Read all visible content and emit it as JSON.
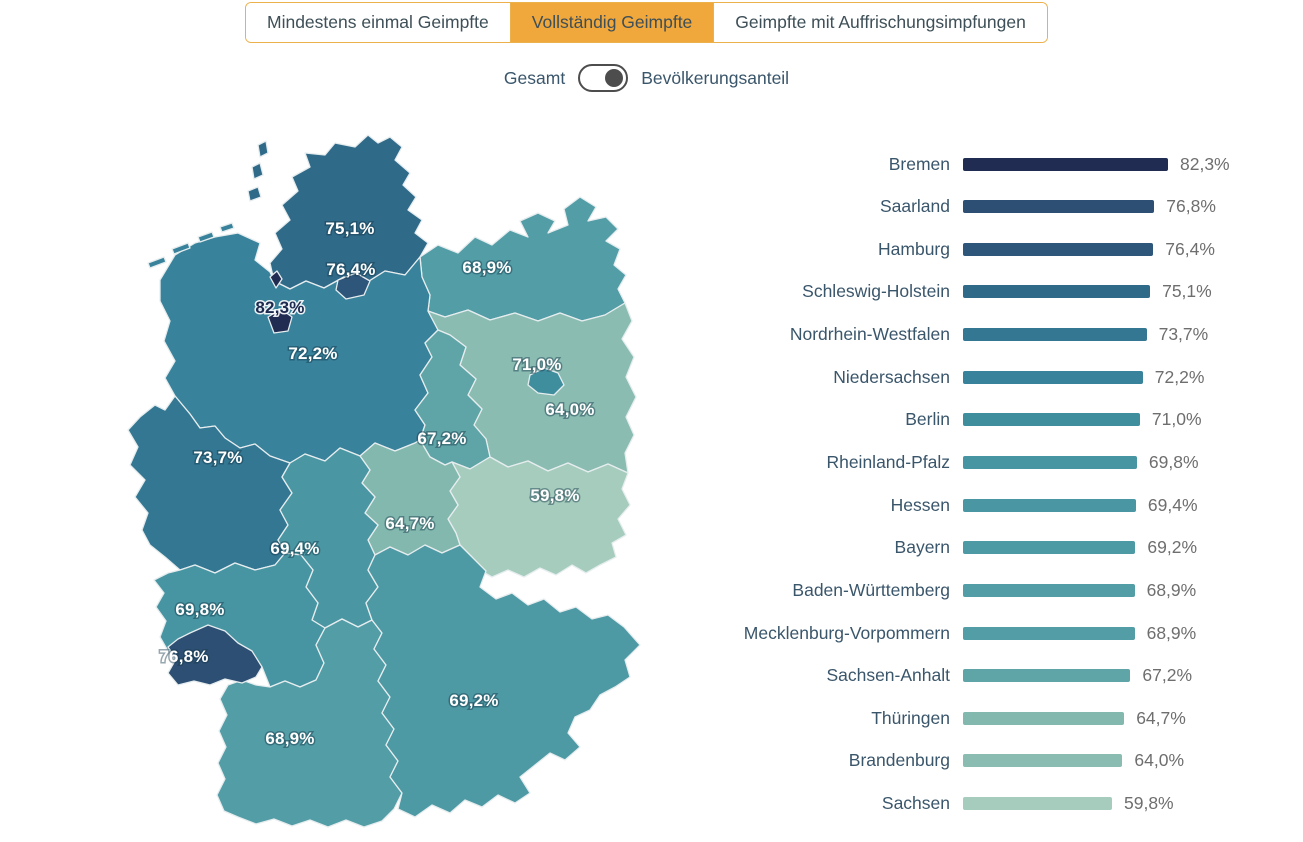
{
  "tabs": [
    {
      "label": "Mindestens einmal Geimpfte",
      "active": false
    },
    {
      "label": "Vollständig Geimpfte",
      "active": true
    },
    {
      "label": "Geimpfte mit Auffrischungsimpfungen",
      "active": false
    }
  ],
  "toggle": {
    "left_label": "Gesamt",
    "right_label": "Bevölkerungsanteil",
    "state": "right"
  },
  "colors": {
    "accent_amber": "#f0a73c",
    "tab_border": "#edb14c",
    "text_dark": "#3a566b",
    "value_gray": "#6e6e6e",
    "map_border": "#e6edef",
    "toggle_knob": "#4d4d4d"
  },
  "chart_data": {
    "type": "bar",
    "subtype": "choropleth-map-with-bar-list",
    "title": "",
    "unit": "%",
    "xlim": [
      0,
      82.3
    ],
    "legend": "none",
    "categories": [
      "Bremen",
      "Saarland",
      "Hamburg",
      "Schleswig-Holstein",
      "Nordrhein-Westfalen",
      "Niedersachsen",
      "Berlin",
      "Rheinland-Pfalz",
      "Hessen",
      "Bayern",
      "Baden-Württemberg",
      "Mecklenburg-Vorpommern",
      "Sachsen-Anhalt",
      "Thüringen",
      "Brandenburg",
      "Sachsen"
    ],
    "values": [
      82.3,
      76.8,
      76.4,
      75.1,
      73.7,
      72.2,
      71.0,
      69.8,
      69.4,
      69.2,
      68.9,
      68.9,
      67.2,
      64.7,
      64.0,
      59.8
    ],
    "states": [
      {
        "id": "bremen",
        "name": "Bremen",
        "value": 82.3,
        "label": "82,3%",
        "color": "#212c52"
      },
      {
        "id": "saarland",
        "name": "Saarland",
        "value": 76.8,
        "label": "76,8%",
        "color": "#2c4f73"
      },
      {
        "id": "hamburg",
        "name": "Hamburg",
        "value": 76.4,
        "label": "76,4%",
        "color": "#2e567a"
      },
      {
        "id": "schleswig-holstein",
        "name": "Schleswig-Holstein",
        "value": 75.1,
        "label": "75,1%",
        "color": "#306a89"
      },
      {
        "id": "nordrhein-westfalen",
        "name": "Nordrhein-Westfalen",
        "value": 73.7,
        "label": "73,7%",
        "color": "#337793"
      },
      {
        "id": "niedersachsen",
        "name": "Niedersachsen",
        "value": 72.2,
        "label": "72,2%",
        "color": "#38829b"
      },
      {
        "id": "berlin",
        "name": "Berlin",
        "value": 71.0,
        "label": "71,0%",
        "color": "#3f8e9e"
      },
      {
        "id": "rheinland-pfalz",
        "name": "Rheinland-Pfalz",
        "value": 69.8,
        "label": "69,8%",
        "color": "#4795a2"
      },
      {
        "id": "hessen",
        "name": "Hessen",
        "value": 69.4,
        "label": "69,4%",
        "color": "#4a97a3"
      },
      {
        "id": "bayern",
        "name": "Bayern",
        "value": 69.2,
        "label": "69,2%",
        "color": "#4d99a4"
      },
      {
        "id": "baden-wuerttemberg",
        "name": "Baden-Württemberg",
        "value": 68.9,
        "label": "68,9%",
        "color": "#529da6"
      },
      {
        "id": "mecklenburg-vorpommern",
        "name": "Mecklenburg-Vorpommern",
        "value": 68.9,
        "label": "68,9%",
        "color": "#529da6"
      },
      {
        "id": "sachsen-anhalt",
        "name": "Sachsen-Anhalt",
        "value": 67.2,
        "label": "67,2%",
        "color": "#5fa5a7"
      },
      {
        "id": "thueringen",
        "name": "Thüringen",
        "value": 64.7,
        "label": "64,7%",
        "color": "#83b8af"
      },
      {
        "id": "brandenburg",
        "name": "Brandenburg",
        "value": 64.0,
        "label": "64,0%",
        "color": "#8abcb2"
      },
      {
        "id": "sachsen",
        "name": "Sachsen",
        "value": 59.8,
        "label": "59,8%",
        "color": "#a5ccbc"
      }
    ]
  }
}
